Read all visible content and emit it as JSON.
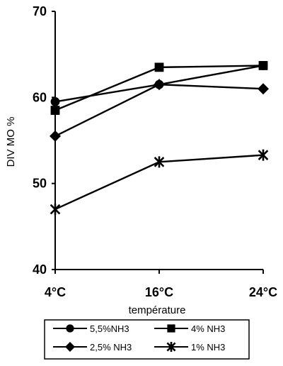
{
  "chart_data": {
    "type": "line",
    "xlabel": "température",
    "ylabel": "DIV MO %",
    "categories": [
      "4°C",
      "16°C",
      "24°C"
    ],
    "ylim": [
      40,
      70
    ],
    "yticks": [
      "40",
      "50",
      "60",
      "70"
    ],
    "grid": false,
    "legend_position": "bottom",
    "series": [
      {
        "name": "5,5%NH3",
        "marker": "circle",
        "values": [
          59.5,
          61.5,
          63.7
        ]
      },
      {
        "name": "4% NH3",
        "marker": "square",
        "values": [
          58.5,
          63.5,
          63.7
        ]
      },
      {
        "name": "2,5% NH3",
        "marker": "diamond",
        "values": [
          55.5,
          61.5,
          61.0
        ]
      },
      {
        "name": "1% NH3",
        "marker": "star",
        "values": [
          47.0,
          52.5,
          53.3
        ]
      }
    ],
    "colors": {
      "line": "#000000",
      "background": "#ffffff"
    }
  }
}
